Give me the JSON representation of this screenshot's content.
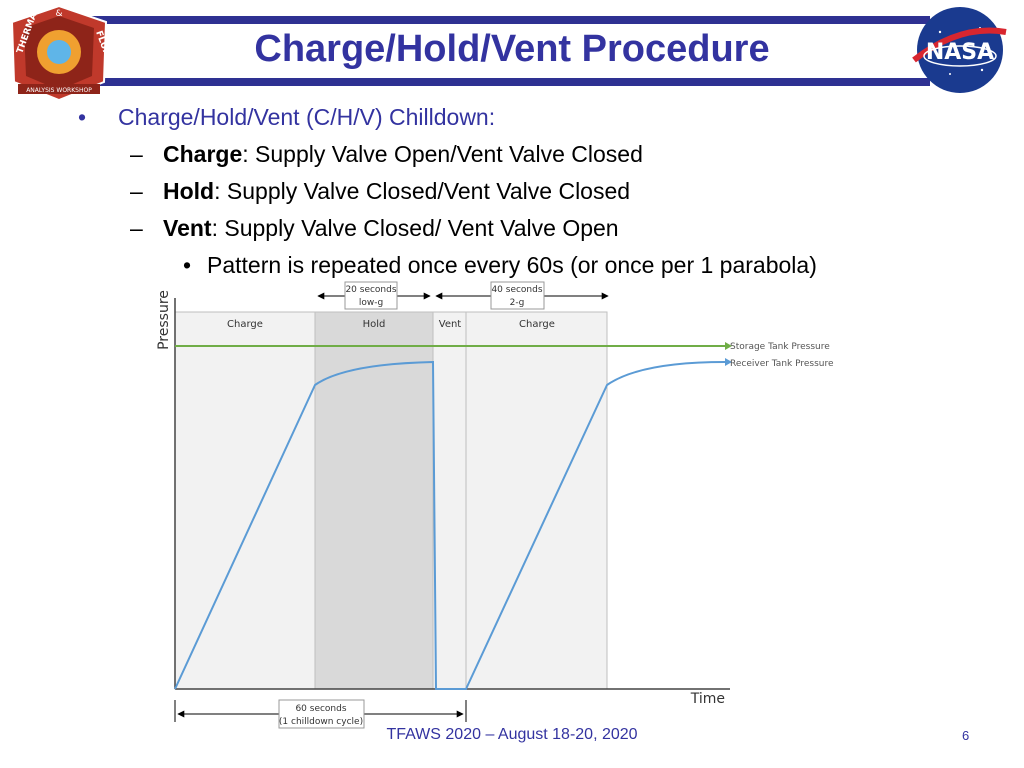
{
  "header": {
    "title": "Charge/Hold/Vent Procedure"
  },
  "logos": {
    "left": {
      "name": "tfaws-logo",
      "text_top": "&",
      "text_arc_left": "THERMAL",
      "text_arc_right": "FLUIDS",
      "text_bottom": "ANALYSIS WORKSHOP"
    },
    "right": {
      "name": "nasa-logo",
      "text": "NASA"
    }
  },
  "bullets": {
    "main": "Charge/Hold/Vent (C/H/V) Chilldown:",
    "items": [
      {
        "term": "Charge",
        "desc": ": Supply Valve Open/Vent Valve Closed"
      },
      {
        "term": "Hold",
        "desc": ": Supply Valve Closed/Vent Valve Closed"
      },
      {
        "term": "Vent",
        "desc": ": Supply Valve Closed/ Vent Valve Open"
      }
    ],
    "sub": "Pattern is repeated once every 60s (or once per 1 parabola)"
  },
  "diagram": {
    "y_axis_label": "Pressure",
    "x_axis_label": "Time",
    "phases": [
      "Charge",
      "Hold",
      "Vent",
      "Charge"
    ],
    "callout_hold_line1": "20 seconds",
    "callout_hold_line2": "low-g",
    "callout_charge_line1": "40 seconds",
    "callout_charge_line2": "2-g",
    "callout_cycle_line1": "60 seconds",
    "callout_cycle_line2": "(1 chilldown cycle)",
    "legend_storage": "Storage Tank Pressure",
    "legend_receiver": "Receiver Tank Pressure",
    "colors": {
      "storage": "#70ad47",
      "receiver": "#5b9bd5",
      "hold_shade": "#d9d9d9",
      "phase_shade": "#f2f2f2"
    }
  },
  "footer": {
    "text": "TFAWS 2020 – August 18-20, 2020",
    "page": "6"
  }
}
